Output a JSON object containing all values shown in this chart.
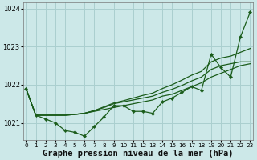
{
  "background_color": "#cce8e8",
  "grid_color": "#aacfcf",
  "line_color": "#1a5c1a",
  "xlabel": "Graphe pression niveau de la mer (hPa)",
  "xlabel_fontsize": 7.5,
  "ylim": [
    1020.55,
    1024.15
  ],
  "xlim": [
    -0.3,
    23.3
  ],
  "yticks": [
    1021,
    1022,
    1023,
    1024
  ],
  "xticks": [
    0,
    1,
    2,
    3,
    4,
    5,
    6,
    7,
    8,
    9,
    10,
    11,
    12,
    13,
    14,
    15,
    16,
    17,
    18,
    19,
    20,
    21,
    22,
    23
  ],
  "jagged": [
    1021.9,
    1021.2,
    1021.1,
    1021.0,
    1020.8,
    1020.75,
    1020.65,
    1020.9,
    1021.15,
    1021.45,
    1021.45,
    1021.3,
    1021.3,
    1021.25,
    1021.55,
    1021.65,
    1021.8,
    1021.95,
    1021.85,
    1022.8,
    1022.45,
    1022.2,
    1023.25,
    1023.9
  ],
  "smooth1": [
    1021.9,
    1021.2,
    1021.2,
    1021.2,
    1021.2,
    1021.22,
    1021.25,
    1021.3,
    1021.35,
    1021.4,
    1021.45,
    1021.5,
    1021.55,
    1021.6,
    1021.7,
    1021.75,
    1021.85,
    1021.95,
    1022.05,
    1022.2,
    1022.3,
    1022.4,
    1022.5,
    1022.55
  ],
  "smooth2": [
    1021.9,
    1021.2,
    1021.2,
    1021.2,
    1021.2,
    1021.22,
    1021.25,
    1021.32,
    1021.4,
    1021.5,
    1021.55,
    1021.6,
    1021.65,
    1021.7,
    1021.8,
    1021.88,
    1021.98,
    1022.1,
    1022.2,
    1022.4,
    1022.5,
    1022.55,
    1022.6,
    1022.6
  ],
  "smooth3": [
    1021.9,
    1021.2,
    1021.2,
    1021.2,
    1021.2,
    1021.22,
    1021.25,
    1021.32,
    1021.42,
    1021.52,
    1021.58,
    1021.65,
    1021.72,
    1021.78,
    1021.9,
    1022.0,
    1022.12,
    1022.25,
    1022.35,
    1022.6,
    1022.7,
    1022.75,
    1022.85,
    1022.95
  ]
}
